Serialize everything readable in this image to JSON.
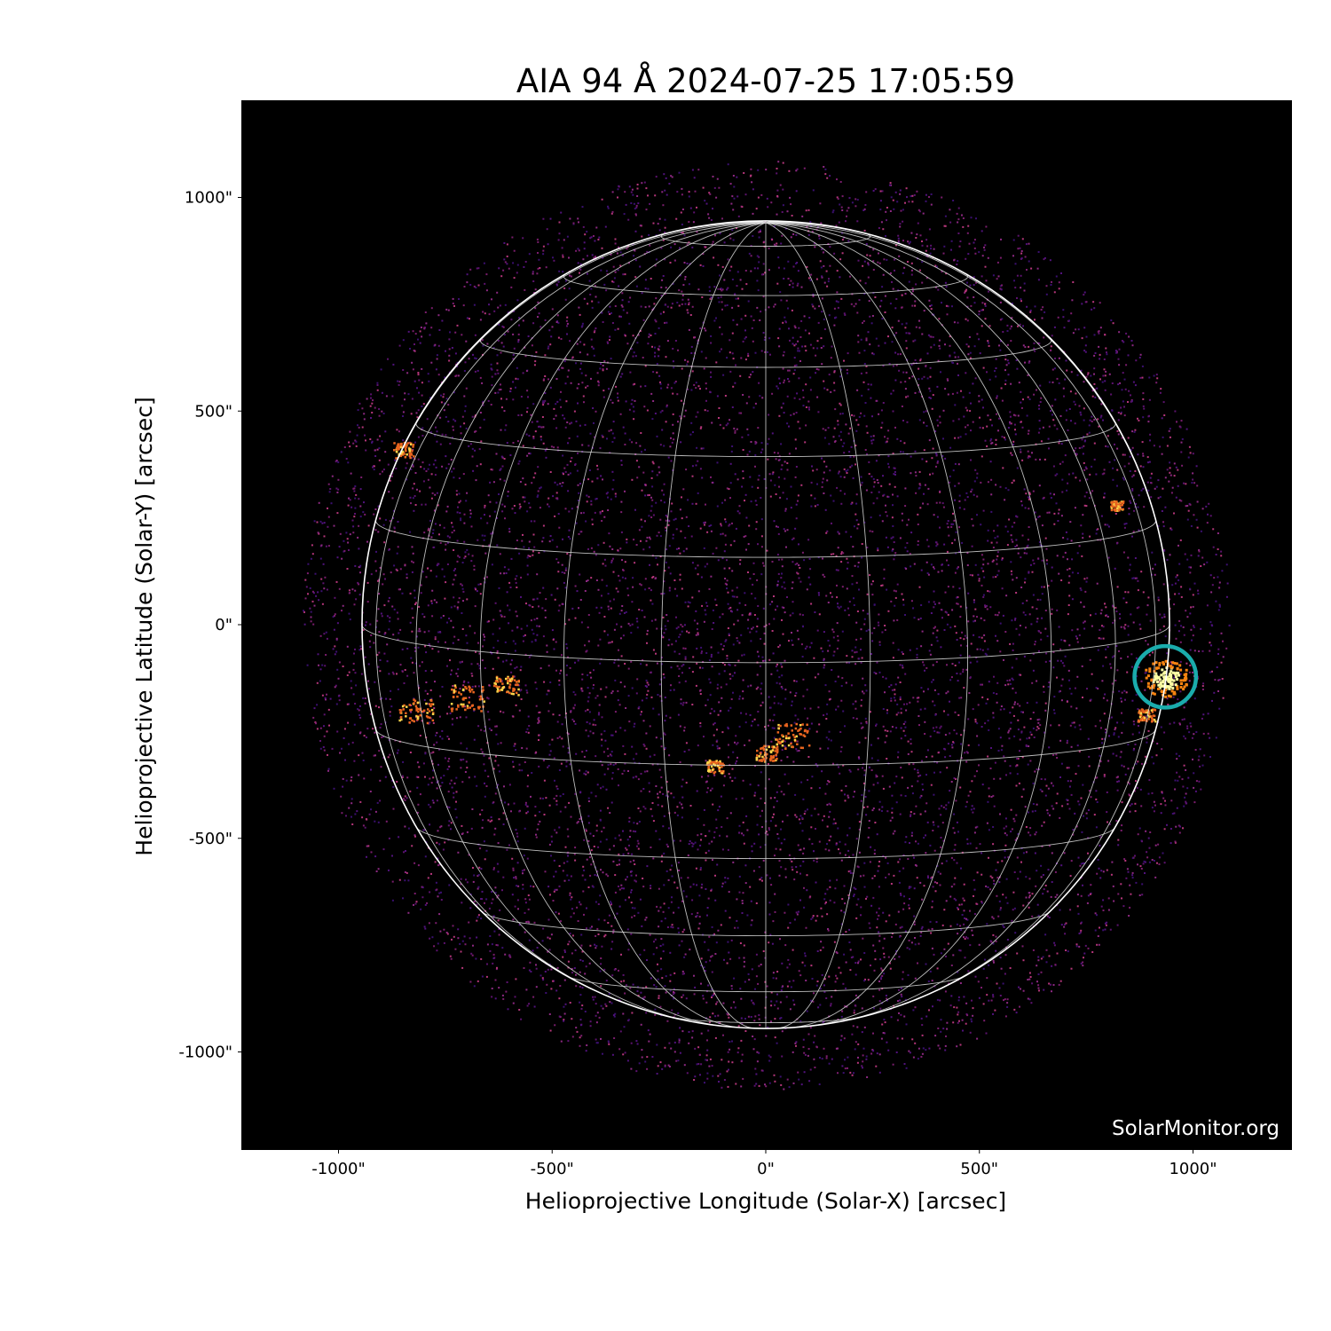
{
  "chart_data": {
    "type": "heatmap",
    "title": "AIA 94 Å 2024-07-25 17:05:59",
    "xlabel": "Helioprojective Longitude (Solar-X) [arcsec]",
    "ylabel": "Helioprojective Latitude (Solar-Y) [arcsec]",
    "xlim": [
      -1228,
      1228
    ],
    "ylim": [
      -1228,
      1228
    ],
    "xticks": [
      -1000,
      -500,
      0,
      500,
      1000
    ],
    "xtick_labels": [
      "-1000\"",
      "-500\"",
      "0\"",
      "500\"",
      "1000\""
    ],
    "yticks": [
      1000,
      500,
      0,
      -500,
      -1000
    ],
    "ytick_labels": [
      "1000\"",
      "500\"",
      "0\"",
      "-500\"",
      "-1000\""
    ],
    "colormap": "inferno-like (black-purple-orange-yellow)",
    "solar_radius_arcsec": 945,
    "heliographic_grid_spacing_deg": 15,
    "b0_deg": 5.4,
    "annotation_circle": {
      "center": [
        935,
        -122
      ],
      "radius": 72,
      "color": "#1aacac"
    },
    "watermark": "SolarMonitor.org"
  }
}
